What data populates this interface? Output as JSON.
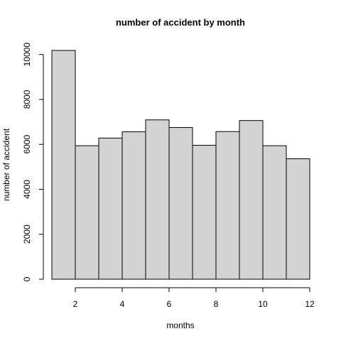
{
  "chart_data": {
    "type": "bar",
    "title": "number of accident by month",
    "xlabel": "months",
    "ylabel": "number of accident",
    "bins": [
      {
        "x0": 1,
        "x1": 2,
        "value": 10180
      },
      {
        "x0": 2,
        "x1": 3,
        "value": 5940
      },
      {
        "x0": 3,
        "x1": 4,
        "value": 6280
      },
      {
        "x0": 4,
        "x1": 5,
        "value": 6560
      },
      {
        "x0": 5,
        "x1": 6,
        "value": 7090
      },
      {
        "x0": 6,
        "x1": 7,
        "value": 6750
      },
      {
        "x0": 7,
        "x1": 8,
        "value": 5960
      },
      {
        "x0": 8,
        "x1": 9,
        "value": 6570
      },
      {
        "x0": 9,
        "x1": 10,
        "value": 7060
      },
      {
        "x0": 10,
        "x1": 11,
        "value": 5940
      },
      {
        "x0": 11,
        "x1": 12,
        "value": 5360
      }
    ],
    "xlim": [
      1,
      12
    ],
    "ylim": [
      0,
      10180
    ],
    "xticks": [
      2,
      4,
      6,
      8,
      10,
      12
    ],
    "yticks": [
      0,
      2000,
      4000,
      6000,
      8000,
      10000
    ],
    "bar_fill": "#d3d3d3",
    "bar_stroke": "#000000",
    "grid": false,
    "legend": "none"
  }
}
